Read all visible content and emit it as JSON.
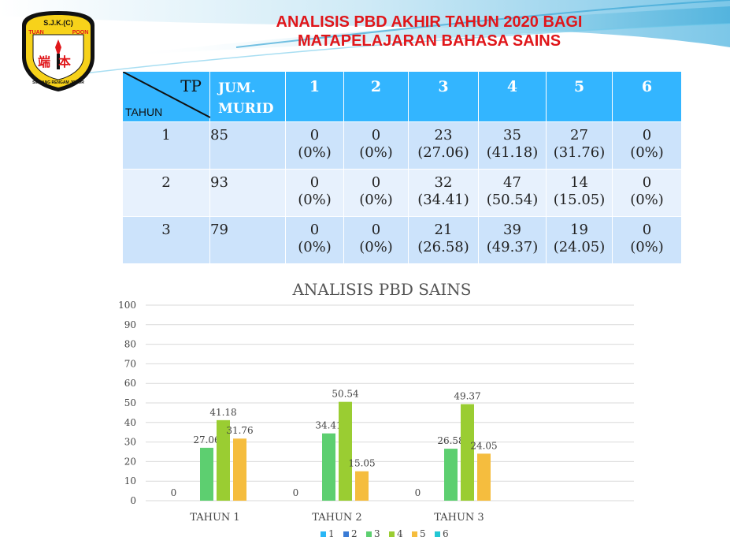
{
  "slide": {
    "title_line1": "ANALISIS PBD AKHIR TAHUN 2020 BAGI",
    "title_line2": "MATAPELAJARAN BAHASA SAINS",
    "colors": {
      "title": "#e0161a",
      "table_header": "#33b5ff",
      "row_odd": "#cce3fb",
      "row_even": "#e7f1fd"
    }
  },
  "logo": {
    "top_text": "S.J.K.(C)",
    "left_word": "TUAN",
    "right_word": "POON",
    "chars": "端本",
    "bottom_text": "SIMPANG RENGAM JOHOR"
  },
  "table": {
    "header_tp": "TP",
    "header_tahun": "TAHUN",
    "header_jum_line1": "JUM.",
    "header_jum_line2": "MURID",
    "level_headers": [
      "1",
      "2",
      "3",
      "4",
      "5",
      "6"
    ],
    "rows": [
      {
        "tahun": "1",
        "murid": "85",
        "cells": [
          {
            "n": "0",
            "p": "(0%)"
          },
          {
            "n": "0",
            "p": "(0%)"
          },
          {
            "n": "23",
            "p": "(27.06)"
          },
          {
            "n": "35",
            "p": "(41.18)"
          },
          {
            "n": "27",
            "p": "(31.76)"
          },
          {
            "n": "0",
            "p": "(0%)"
          }
        ]
      },
      {
        "tahun": "2",
        "murid": "93",
        "cells": [
          {
            "n": "0",
            "p": "(0%)"
          },
          {
            "n": "0",
            "p": "(0%)"
          },
          {
            "n": "32",
            "p": "(34.41)"
          },
          {
            "n": "47",
            "p": "(50.54)"
          },
          {
            "n": "14",
            "p": "(15.05)"
          },
          {
            "n": "0",
            "p": "(0%)"
          }
        ]
      },
      {
        "tahun": "3",
        "murid": "79",
        "cells": [
          {
            "n": "0",
            "p": "(0%)"
          },
          {
            "n": "0",
            "p": "(0%)"
          },
          {
            "n": "21",
            "p": "(26.58)"
          },
          {
            "n": "39",
            "p": "(49.37)"
          },
          {
            "n": "19",
            "p": "(24.05)"
          },
          {
            "n": "0",
            "p": "(0%)"
          }
        ]
      }
    ]
  },
  "chart_data": {
    "type": "bar",
    "title": "ANALISIS  PBD SAINS",
    "categories": [
      "TAHUN 1",
      "TAHUN 2",
      "TAHUN 3"
    ],
    "ylim": [
      0,
      100
    ],
    "yticks": [
      "0",
      "10",
      "20",
      "30",
      "40",
      "50",
      "60",
      "70",
      "80",
      "90",
      "100"
    ],
    "grid": true,
    "legend_position": "bottom",
    "series": [
      {
        "name": "1",
        "color": "#29b6f6",
        "values": [
          0,
          0,
          0
        ]
      },
      {
        "name": "2",
        "color": "#3a7bd5",
        "values": [
          0,
          0,
          0
        ]
      },
      {
        "name": "3",
        "color": "#5dcf70",
        "values": [
          27.06,
          34.41,
          26.58
        ]
      },
      {
        "name": "4",
        "color": "#9acd32",
        "values": [
          41.18,
          50.54,
          49.37
        ]
      },
      {
        "name": "5",
        "color": "#f5bd3e",
        "values": [
          31.76,
          15.05,
          24.05
        ]
      },
      {
        "name": "6",
        "color": "#22c7d4",
        "values": [
          0,
          0,
          0
        ]
      }
    ],
    "data_labels": [
      [
        "0",
        "",
        "27.06",
        "41.18",
        "31.76",
        ""
      ],
      [
        "0",
        "",
        "34.41",
        "50.54",
        "15.05",
        ""
      ],
      [
        "0",
        "",
        "26.58",
        "49.37",
        "24.05",
        ""
      ]
    ]
  }
}
